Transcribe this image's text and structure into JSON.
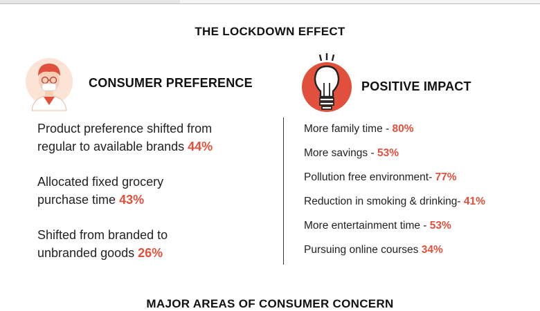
{
  "title": "THE LOCKDOWN EFFECT",
  "left": {
    "heading": "CONSUMER PREFERENCE",
    "icon": "person-mask-icon",
    "items": [
      {
        "line1": "Product preference shifted from",
        "line2": "regular to available brands",
        "pct": "44%"
      },
      {
        "line1": "Allocated fixed grocery",
        "line2": "purchase time",
        "pct": "43%"
      },
      {
        "line1": "Shifted from branded to",
        "line2": "unbranded goods",
        "pct": "26%"
      }
    ]
  },
  "right": {
    "heading": "POSITIVE IMPACT",
    "icon": "lightbulb-icon",
    "items": [
      {
        "label": "More family time - ",
        "pct": "80%"
      },
      {
        "label": "More savings - ",
        "pct": "53%"
      },
      {
        "label": "Pollution free environment- ",
        "pct": "77%"
      },
      {
        "label": "Reduction in smoking & drinking- ",
        "pct": "41%"
      },
      {
        "label": "More entertainment time - ",
        "pct": "53%"
      },
      {
        "label": "Pursuing online courses ",
        "pct": "34%"
      }
    ]
  },
  "next_heading": "MAJOR AREAS OF CONSUMER CONCERN",
  "colors": {
    "accent": "#e0503c",
    "skin": "#f6cdb5",
    "hair": "#e0503c"
  }
}
